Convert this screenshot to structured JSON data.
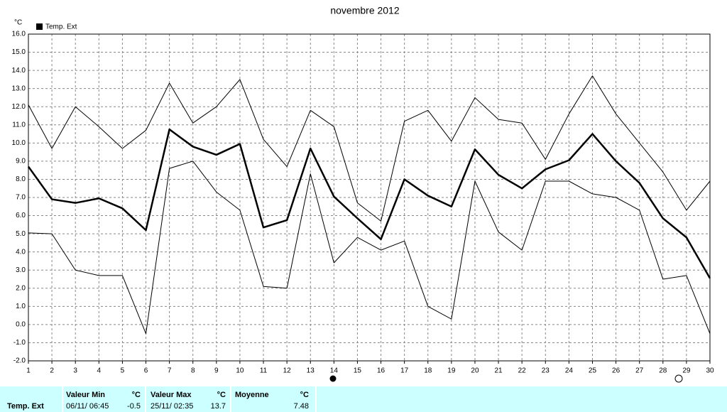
{
  "chart_data": {
    "type": "line",
    "title": "novembre 2012",
    "y_unit": "°C",
    "legend": "Temp. Ext",
    "categories": [
      "1",
      "2",
      "3",
      "4",
      "5",
      "6",
      "7",
      "8",
      "9",
      "10",
      "11",
      "12",
      "13",
      "14",
      "15",
      "16",
      "17",
      "18",
      "19",
      "20",
      "21",
      "22",
      "23",
      "24",
      "25",
      "26",
      "27",
      "28",
      "29",
      "30"
    ],
    "series": [
      {
        "color": "#000000",
        "width": 1,
        "values": [
          12.1,
          9.7,
          12.0,
          10.9,
          9.7,
          10.7,
          13.3,
          11.1,
          12.0,
          13.5,
          10.2,
          8.7,
          11.8,
          10.9,
          6.7,
          5.7,
          11.2,
          11.8,
          10.1,
          12.5,
          11.3,
          11.1,
          9.1,
          11.6,
          13.7,
          11.6,
          10.0,
          8.4,
          6.3,
          7.9
        ]
      },
      {
        "color": "#000000",
        "width": 2.5,
        "values": [
          8.7,
          6.9,
          6.7,
          6.95,
          6.4,
          5.2,
          10.75,
          9.8,
          9.35,
          9.95,
          5.35,
          5.75,
          9.7,
          7.05,
          5.85,
          4.7,
          8.0,
          7.1,
          6.5,
          9.65,
          8.25,
          7.5,
          8.55,
          9.05,
          10.5,
          9.0,
          7.8,
          5.85,
          4.8,
          2.55
        ]
      },
      {
        "color": "#000000",
        "width": 1,
        "values": [
          5.05,
          5.0,
          3.0,
          2.7,
          2.7,
          -0.5,
          8.6,
          9.0,
          7.3,
          6.3,
          2.1,
          2.0,
          8.3,
          3.4,
          4.8,
          4.1,
          4.6,
          1.0,
          0.3,
          7.9,
          5.1,
          4.1,
          7.9,
          7.9,
          7.2,
          7.0,
          6.3,
          2.5,
          2.7,
          -0.5
        ]
      }
    ],
    "ylim": [
      -2,
      16
    ],
    "yticks": [
      {
        "value": 16,
        "label": "16.0"
      },
      {
        "value": 15,
        "label": "15.0"
      },
      {
        "value": 14,
        "label": "14.0"
      },
      {
        "value": 13,
        "label": "13.0"
      },
      {
        "value": 12,
        "label": "12.0"
      },
      {
        "value": 11,
        "label": "11.0"
      },
      {
        "value": 10,
        "label": "10.0"
      },
      {
        "value": 9,
        "label": "9.0"
      },
      {
        "value": 8,
        "label": "8.0"
      },
      {
        "value": 7,
        "label": "7.0"
      },
      {
        "value": 6,
        "label": "6.0"
      },
      {
        "value": 5,
        "label": "5.0"
      },
      {
        "value": 4,
        "label": "4.0"
      },
      {
        "value": 3,
        "label": "3.0"
      },
      {
        "value": 2,
        "label": "2.0"
      },
      {
        "value": 1,
        "label": "1.0"
      },
      {
        "value": 0,
        "label": "0.0"
      },
      {
        "value": -1,
        "label": "-1.0"
      },
      {
        "value": -2,
        "label": "-2.0"
      }
    ],
    "grid": true
  },
  "table": {
    "header": [
      "Valeur Min",
      "°C",
      "Valeur Max",
      "°C",
      "Moyenne",
      "°C"
    ],
    "rows": [
      [
        "Temp. Ext",
        "06/11/ 06:45",
        "-0.5",
        "25/11/ 02:35",
        "13.7",
        "7.48"
      ]
    ]
  }
}
